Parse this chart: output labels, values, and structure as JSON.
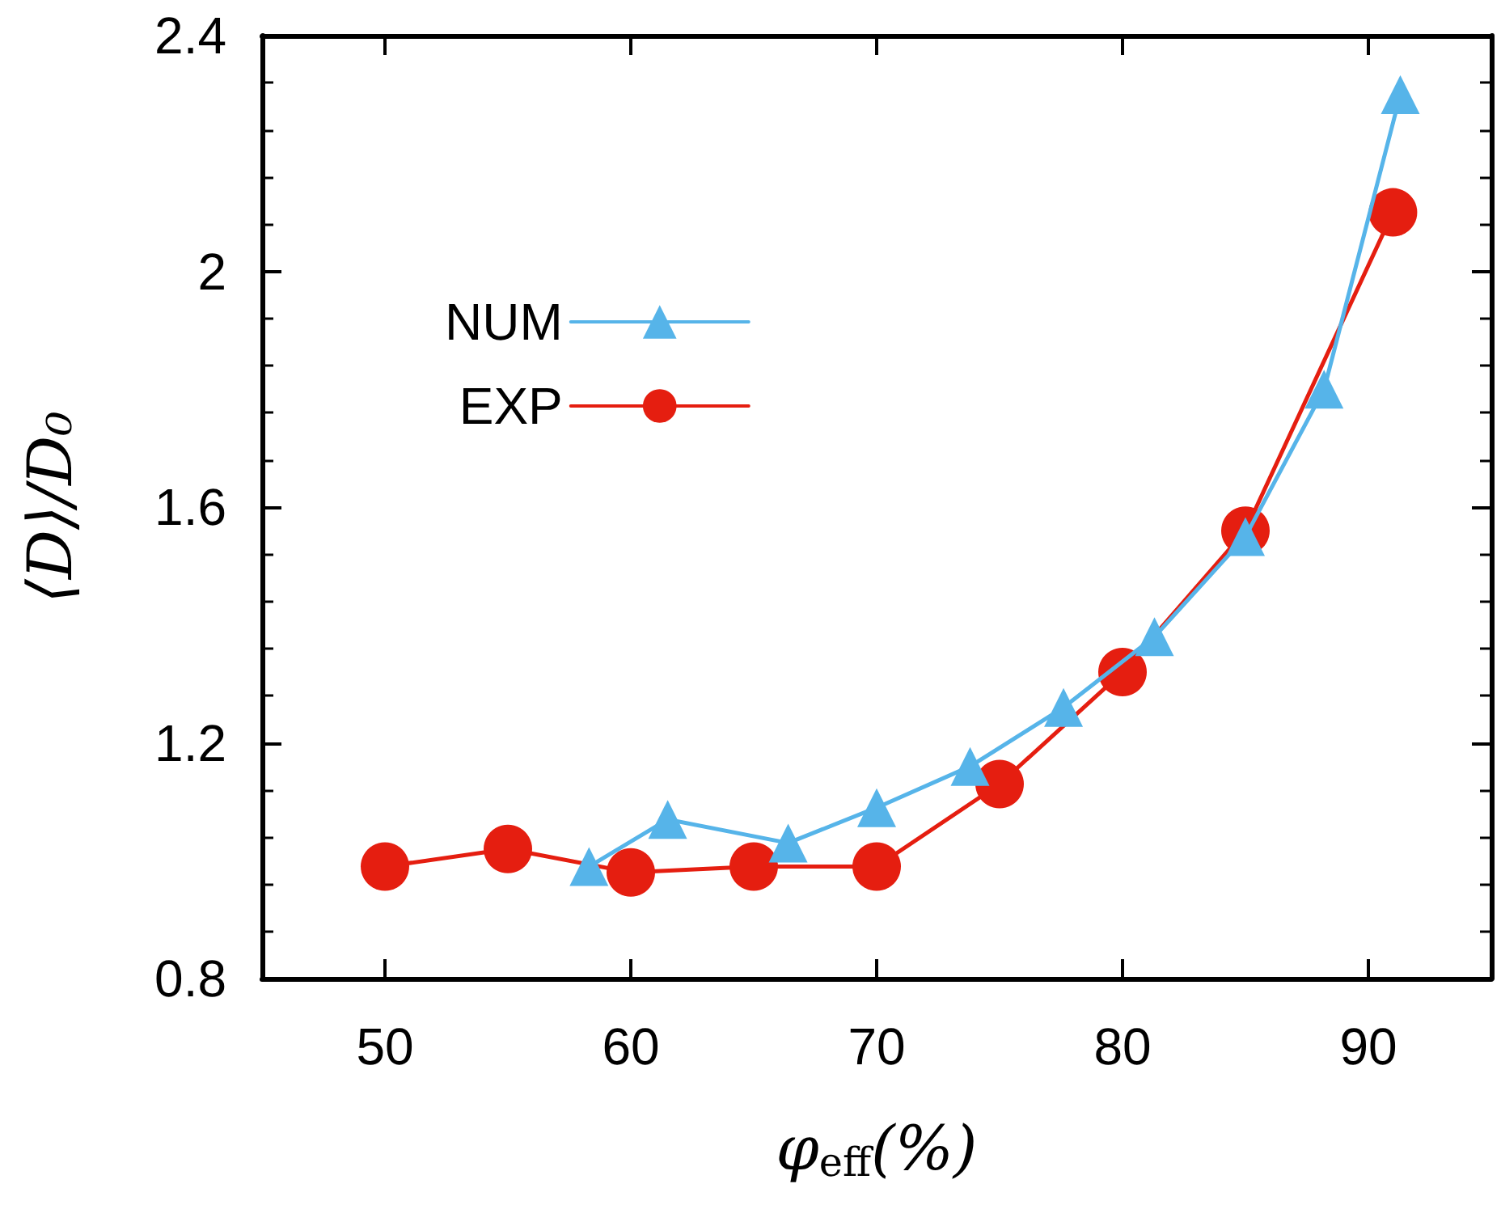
{
  "chart_data": {
    "type": "line",
    "xlabel": "φ$_{eff}$(%)",
    "ylabel": "⟨D⟩/D₀",
    "xlim": [
      45,
      95
    ],
    "xticks": [
      50,
      60,
      70,
      80,
      90
    ],
    "ylim": [
      0.8,
      2.4
    ],
    "yticks": [
      0.8,
      1.2,
      1.6,
      2,
      2.4
    ],
    "grid": false,
    "legend": "top left",
    "series": [
      {
        "name": "NUM",
        "color": "#56b4e9",
        "marker": "triangle",
        "x": [
          58.3,
          61.5,
          66.4,
          70.0,
          73.8,
          77.6,
          81.3,
          85.0,
          88.2,
          91.3
        ],
        "values": [
          0.99,
          1.07,
          1.03,
          1.09,
          1.16,
          1.26,
          1.38,
          1.55,
          1.8,
          2.3
        ]
      },
      {
        "name": "EXP",
        "color": "#e51e10",
        "marker": "circle",
        "x": [
          50,
          55,
          60,
          65,
          70,
          75,
          80,
          85,
          91.0
        ],
        "values": [
          0.99,
          1.02,
          0.98,
          0.99,
          0.99,
          1.13,
          1.32,
          1.56,
          2.1
        ]
      }
    ]
  }
}
